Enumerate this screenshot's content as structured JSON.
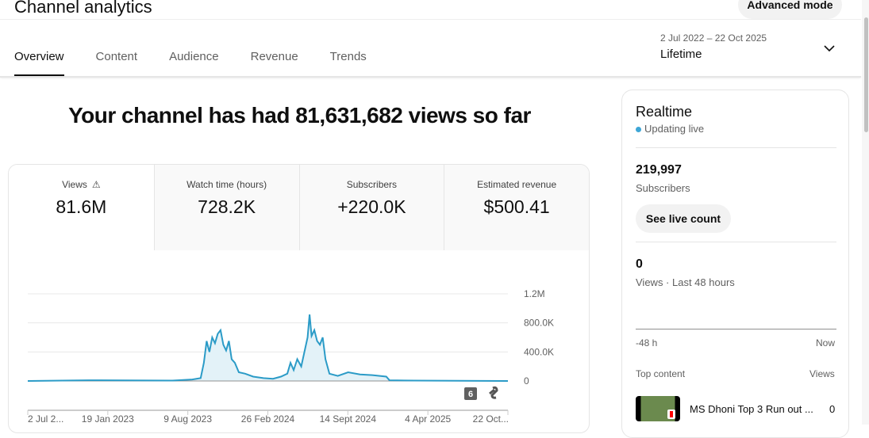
{
  "header": {
    "title": "Channel analytics",
    "advanced_mode": "Advanced mode"
  },
  "tabs": [
    {
      "label": "Overview",
      "active": true
    },
    {
      "label": "Content"
    },
    {
      "label": "Audience"
    },
    {
      "label": "Revenue"
    },
    {
      "label": "Trends"
    }
  ],
  "date_range": {
    "dates": "2 Jul 2022 – 22 Oct 2025",
    "label": "Lifetime"
  },
  "headline": "Your channel has had 81,631,682 views so far",
  "metrics": [
    {
      "label": "Views",
      "value": "81.6M",
      "icon": "warning-icon"
    },
    {
      "label": "Watch time (hours)",
      "value": "728.2K"
    },
    {
      "label": "Subscribers",
      "value": "+220.0K"
    },
    {
      "label": "Estimated revenue",
      "value": "$500.41"
    }
  ],
  "chart_data": {
    "type": "area",
    "color": "#2b9bc7",
    "ylim": [
      0,
      1200000
    ],
    "y_ticks": [
      "0",
      "400.0K",
      "800.0K",
      "1.2M"
    ],
    "x_ticks": [
      "2 Jul 2...",
      "19 Jan 2023",
      "9 Aug 2023",
      "26 Feb 2024",
      "14 Sept 2024",
      "4 Apr 2025",
      "22 Oct..."
    ],
    "x_range": [
      "2022-07-02",
      "2025-10-22"
    ],
    "grid": true,
    "badge": "6",
    "points": [
      [
        "2022-07-02",
        0
      ],
      [
        "2022-12-01",
        10000
      ],
      [
        "2023-03-01",
        8000
      ],
      [
        "2023-07-01",
        5000
      ],
      [
        "2023-08-20",
        20000
      ],
      [
        "2023-09-10",
        40000
      ],
      [
        "2023-09-18",
        250000
      ],
      [
        "2023-09-25",
        550000
      ],
      [
        "2023-10-02",
        400000
      ],
      [
        "2023-10-09",
        600000
      ],
      [
        "2023-10-16",
        520000
      ],
      [
        "2023-10-23",
        650000
      ],
      [
        "2023-10-30",
        700000
      ],
      [
        "2023-11-06",
        500000
      ],
      [
        "2023-11-13",
        420000
      ],
      [
        "2023-11-20",
        550000
      ],
      [
        "2023-11-27",
        300000
      ],
      [
        "2023-12-05",
        250000
      ],
      [
        "2023-12-15",
        120000
      ],
      [
        "2023-12-31",
        100000
      ],
      [
        "2024-01-20",
        60000
      ],
      [
        "2024-02-15",
        40000
      ],
      [
        "2024-03-10",
        30000
      ],
      [
        "2024-03-30",
        60000
      ],
      [
        "2024-04-15",
        100000
      ],
      [
        "2024-04-23",
        250000
      ],
      [
        "2024-05-01",
        150000
      ],
      [
        "2024-05-10",
        300000
      ],
      [
        "2024-05-20",
        200000
      ],
      [
        "2024-05-30",
        450000
      ],
      [
        "2024-06-05",
        600000
      ],
      [
        "2024-06-10",
        915000
      ],
      [
        "2024-06-15",
        620000
      ],
      [
        "2024-06-22",
        700000
      ],
      [
        "2024-06-29",
        550000
      ],
      [
        "2024-07-06",
        500000
      ],
      [
        "2024-07-13",
        600000
      ],
      [
        "2024-07-20",
        300000
      ],
      [
        "2024-07-30",
        100000
      ],
      [
        "2024-08-20",
        70000
      ],
      [
        "2024-09-15",
        120000
      ],
      [
        "2024-10-15",
        90000
      ],
      [
        "2024-11-15",
        80000
      ],
      [
        "2024-12-20",
        60000
      ],
      [
        "2024-12-28",
        10000
      ],
      [
        "2025-03-01",
        5000
      ],
      [
        "2025-10-22",
        0
      ]
    ]
  },
  "realtime": {
    "title": "Realtime",
    "status": "Updating live",
    "subscribers": "219,997",
    "subscribers_label": "Subscribers",
    "live_button": "See live count",
    "views": "0",
    "views_label": "Views · Last 48 hours",
    "axis_start": "-48 h",
    "axis_end": "Now",
    "top_content_label": "Top content",
    "views_col": "Views",
    "top_items": [
      {
        "title": "MS Dhoni Top 3 Run out ...",
        "views": "0"
      }
    ]
  }
}
